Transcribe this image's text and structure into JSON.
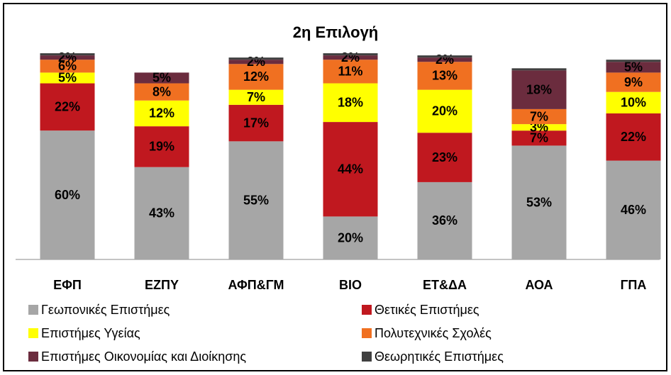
{
  "chart_data": {
    "type": "stacked_bar",
    "title": "2η Επιλογή",
    "categories": [
      "ΕΦΠ",
      "ΕΖΠΥ",
      "ΑΦΠ&ΓΜ",
      "ΒΙΟ",
      "ΕΤ&ΔΑ",
      "ΑΟΑ",
      "ΓΠΑ"
    ],
    "legend": "bottom",
    "series": [
      {
        "name": "Γεωπονικές Επιστήμες",
        "color": "#a6a6a6",
        "values": [
          60,
          43,
          55,
          20,
          36,
          53,
          46
        ],
        "value_labels": [
          "60%",
          "43%",
          "55%",
          "20%",
          "36%",
          "53%",
          "46%"
        ]
      },
      {
        "name": "Θετικές Επιστήμες",
        "color": "#c0181f",
        "values": [
          22,
          19,
          17,
          44,
          23,
          7,
          22
        ],
        "value_labels": [
          "22%",
          "19%",
          "17%",
          "44%",
          "23%",
          "7%",
          "22%"
        ]
      },
      {
        "name": "Επιστήμες Υγείας",
        "color": "#ffff00",
        "values": [
          5,
          12,
          7,
          18,
          20,
          3,
          10
        ],
        "value_labels": [
          "5%",
          "12%",
          "7%",
          "18%",
          "20%",
          "3%",
          "10%"
        ]
      },
      {
        "name": "Πολυτεχνικές Σχολές",
        "color": "#f07021",
        "values": [
          6,
          8,
          12,
          11,
          13,
          7,
          9
        ],
        "value_labels": [
          "6%",
          "8%",
          "12%",
          "11%",
          "13%",
          "7%",
          "9%"
        ]
      },
      {
        "name": "Επιστήμες Οικονομίας και Διοίκησης",
        "color": "#6b2c3e",
        "values": [
          2,
          5,
          2,
          2,
          2,
          18,
          5
        ],
        "value_labels": [
          "2%",
          "5%",
          "2%",
          "2%",
          "2%",
          "18%",
          "5%"
        ]
      },
      {
        "name": "Θεωρητικές Επιστήμες",
        "color": "#404040",
        "values": [
          1,
          0,
          1,
          1,
          1,
          1,
          1
        ]
      }
    ]
  }
}
